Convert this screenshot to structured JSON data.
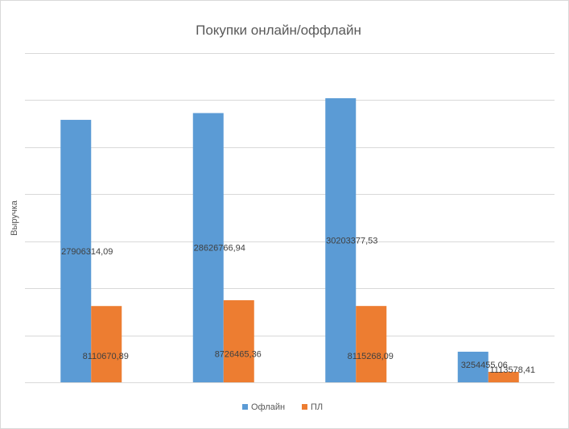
{
  "chart_data": {
    "type": "bar",
    "title": "Покупки онлайн/оффлайн",
    "xlabel": "",
    "ylabel": "Выручка",
    "categories": [
      "",
      "",
      "",
      ""
    ],
    "ylim": [
      0,
      35000000
    ],
    "grid": true,
    "legend_position": "bottom",
    "series": [
      {
        "name": "Офлайн",
        "color": "#5b9bd5",
        "values": [
          27906314.09,
          28626766.94,
          30203377.53,
          3254455.06
        ],
        "labels": [
          "27906314,09",
          "28626766,94",
          "30203377,53",
          "3254455,06"
        ]
      },
      {
        "name": "ПЛ",
        "color": "#ed7d31",
        "values": [
          8110670.89,
          8726465.36,
          8115268.09,
          1113578.41
        ],
        "labels": [
          "8110670,89",
          "8726465,36",
          "8115268,09",
          "1113578,41"
        ]
      }
    ]
  }
}
